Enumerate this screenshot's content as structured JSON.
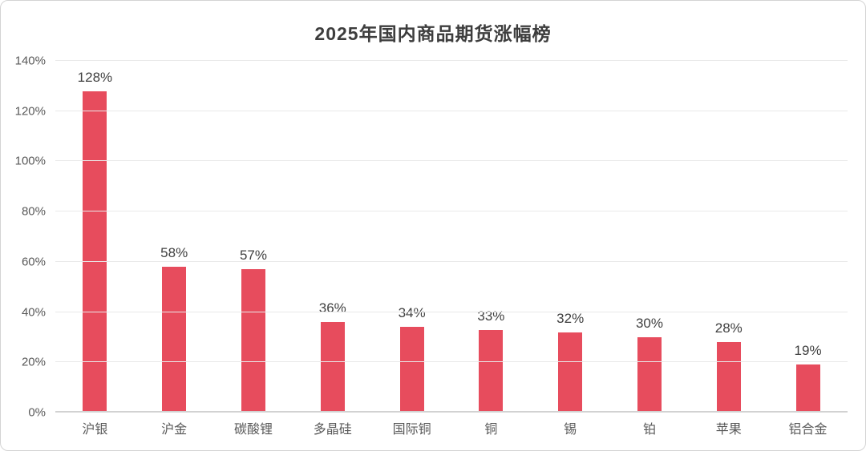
{
  "page": {
    "title": "2025年国内商品期货涨幅榜"
  },
  "chart_data": {
    "type": "bar",
    "title": "2025年国内商品期货涨幅榜",
    "categories": [
      "沪银",
      "沪金",
      "碳酸锂",
      "多晶硅",
      "国际铜",
      "铜",
      "锡",
      "铂",
      "苹果",
      "铝合金"
    ],
    "values": [
      128,
      58,
      57,
      36,
      34,
      33,
      32,
      30,
      28,
      19
    ],
    "data_labels": [
      "128%",
      "58%",
      "57%",
      "36%",
      "34%",
      "33%",
      "32%",
      "30%",
      "28%",
      "19%"
    ],
    "xlabel": "",
    "ylabel": "",
    "ylim": [
      0,
      140
    ],
    "ytick_step": 20,
    "ytick_labels": [
      "0%",
      "20%",
      "40%",
      "60%",
      "80%",
      "100%",
      "120%",
      "140%"
    ],
    "grid": true,
    "legend": false,
    "colors": {
      "bar": "#e74c5d",
      "title_text": "#3d3d3d",
      "axis_text": "#595959",
      "value_text": "#404040",
      "gridline": "#e9e9e9",
      "axis_line": "#d2d2d2",
      "frame_border": "#d4d4d4",
      "background": "#ffffff"
    }
  }
}
